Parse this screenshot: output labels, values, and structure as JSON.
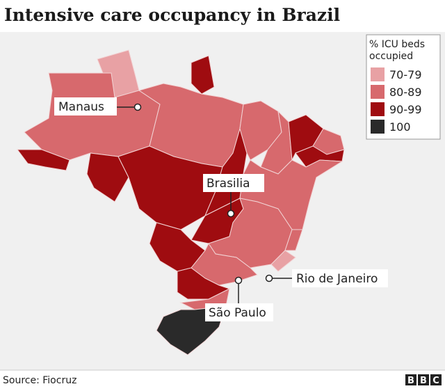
{
  "title": "Intensive care occupancy in Brazil",
  "legend": {
    "title": "% ICU beds occupied",
    "items": [
      {
        "label": "70-79",
        "color": "#e8a1a4"
      },
      {
        "label": "80-89",
        "color": "#d7696d"
      },
      {
        "label": "90-99",
        "color": "#9f0c10"
      },
      {
        "label": "100",
        "color": "#2a2a2a"
      }
    ]
  },
  "cities": [
    "Manaus",
    "Brasilia",
    "São Paulo",
    "Rio de Janeiro"
  ],
  "source": "Source: Fiocruz",
  "logo": "BBC"
}
